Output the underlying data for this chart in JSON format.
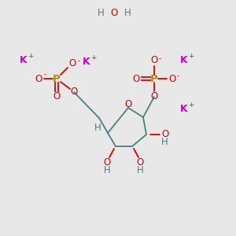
{
  "bg_color": "#e8e8e8",
  "C": "#4a8080",
  "O": "#dd0000",
  "P": "#bb8800",
  "K": "#cc00cc",
  "H": "#4a8080",
  "bond_color": "#4a8080",
  "figsize": [
    3.0,
    3.0
  ],
  "dpi": 100
}
